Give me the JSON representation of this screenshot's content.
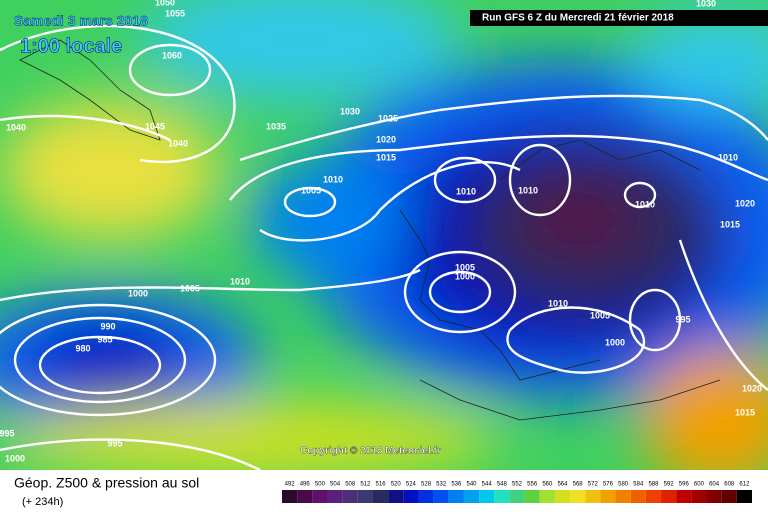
{
  "header": {
    "date": "Samedi 3 mars 2018",
    "time": "1:00 locale",
    "run": "Run GFS 6 Z du Mercredi 21 février 2018"
  },
  "copyright": "Copyright © 2018 Meteociel.fr",
  "footer": {
    "title": "Géop. Z500 & pression au sol",
    "lead": "(+ 234h)"
  },
  "isobar_labels": [
    1050,
    1055,
    1060,
    1040,
    1045,
    1040,
    1035,
    1030,
    1025,
    1020,
    1015,
    1010,
    1005,
    1010,
    1010,
    1010,
    1010,
    1020,
    1015,
    1005,
    1000,
    1010,
    1005,
    995,
    1000,
    1000,
    1005,
    1010,
    990,
    985,
    980,
    995,
    995,
    1000,
    1020,
    1015,
    1030
  ],
  "legend": {
    "levels": [
      492,
      496,
      500,
      504,
      508,
      512,
      516,
      520,
      524,
      528,
      532,
      536,
      540,
      544,
      548,
      552,
      556,
      560,
      564,
      568,
      572,
      576,
      580,
      584,
      588,
      592,
      596,
      600,
      604,
      608,
      612
    ],
    "colors": [
      "#2a0a2a",
      "#4a0a4a",
      "#60106a",
      "#5a2080",
      "#4a3078",
      "#3a3a70",
      "#2a2a60",
      "#101080",
      "#0010c0",
      "#0030e0",
      "#0050f0",
      "#0080f0",
      "#00a0f0",
      "#00c8e8",
      "#20e0c0",
      "#40d080",
      "#60d040",
      "#a0e030",
      "#d0e020",
      "#f0e020",
      "#f0c010",
      "#f0a000",
      "#f08000",
      "#f06000",
      "#f04000",
      "#e02000",
      "#c00000",
      "#a00000",
      "#800000",
      "#600000",
      "#000000"
    ]
  }
}
